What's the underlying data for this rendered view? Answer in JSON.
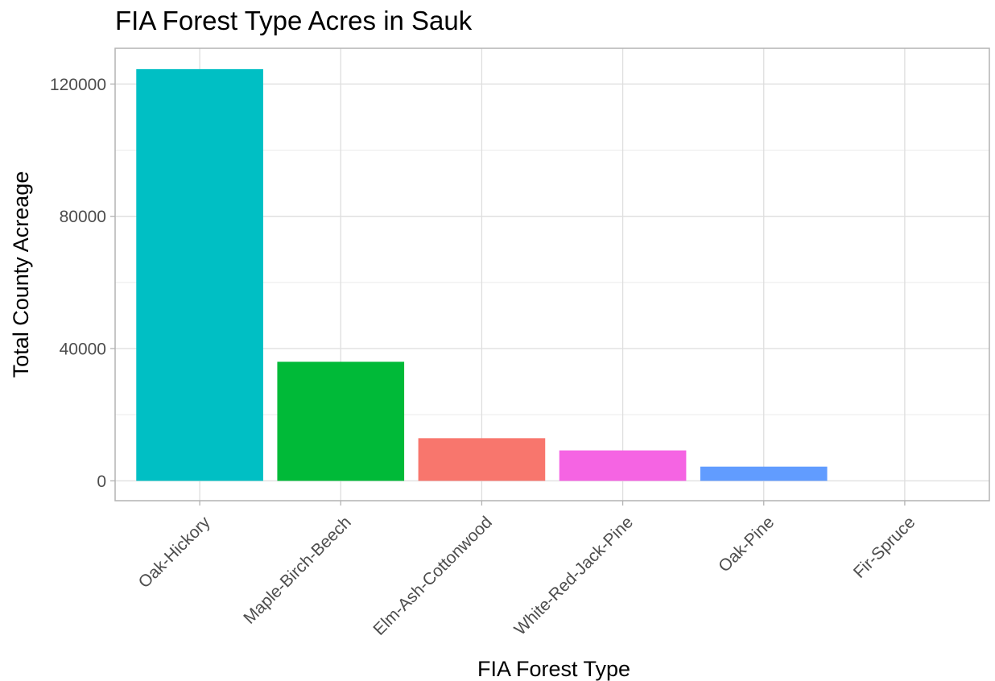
{
  "chart_data": {
    "type": "bar",
    "title": "FIA Forest Type Acres in Sauk",
    "xlabel": "FIA Forest Type",
    "ylabel": "Total County Acreage",
    "categories": [
      "Oak-Hickory",
      "Maple-Birch-Beech",
      "Elm-Ash-Cottonwood",
      "White-Red-Jack-Pine",
      "Oak-Pine",
      "Fir-Spruce"
    ],
    "values": [
      124500,
      36000,
      12900,
      9200,
      4300,
      0
    ],
    "colors": [
      "#00BFC4",
      "#00BA38",
      "#F8766D",
      "#F564E3",
      "#619CFF",
      "#B79F00"
    ],
    "ylim": [
      -6000,
      130800
    ],
    "yticks": [
      0,
      40000,
      80000,
      120000
    ],
    "ytick_labels": [
      "0",
      "40000",
      "80000",
      "120000"
    ],
    "grid": true,
    "legend": "none"
  }
}
